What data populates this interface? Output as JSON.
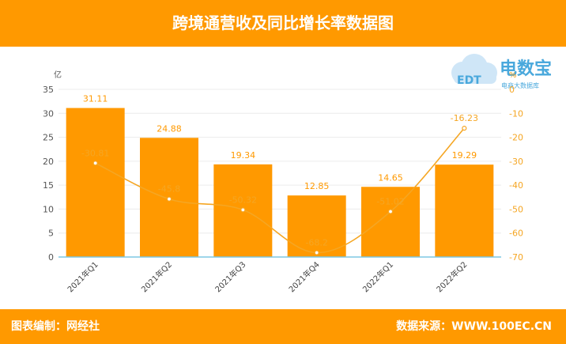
{
  "header": {
    "title": "跨境通营收及同比增长率数据图"
  },
  "logo": {
    "brand": "电数宝",
    "sub": "电商大数据库",
    "mark": "EDT"
  },
  "footer": {
    "editor": "图表编制：网经社",
    "source": "数据来源：WWW.100EC.CN"
  },
  "colors": {
    "accent": "#ff9900",
    "bar": "#ff9900",
    "line": "#f5a623",
    "baseline": "#7ec8e3"
  },
  "chart_data": {
    "type": "bar",
    "title": "跨境通营收及同比增长率数据图",
    "categories": [
      "2021年Q1",
      "2021年Q2",
      "2021年Q3",
      "2021年Q4",
      "2022年Q1",
      "2022年Q2"
    ],
    "y_unit_left": "亿",
    "y_unit_right": "%",
    "ylim": [
      0,
      35
    ],
    "y2lim": [
      -70,
      0
    ],
    "yticks": [
      0,
      5,
      10,
      15,
      20,
      25,
      30,
      35
    ],
    "y2ticks": [
      0,
      -10,
      -20,
      -30,
      -40,
      -50,
      -60,
      -70
    ],
    "series": [
      {
        "type": "bar",
        "axis": "left",
        "values": [
          31.11,
          24.88,
          19.34,
          12.85,
          14.65,
          19.29
        ],
        "labels": [
          "31.11",
          "24.88",
          "19.34",
          "12.85",
          "14.65",
          "19.29"
        ]
      },
      {
        "type": "line",
        "axis": "right",
        "values": [
          -30.81,
          -45.8,
          -50.32,
          -68.2,
          -51.02,
          -16.23
        ],
        "labels": [
          "-30.81",
          "-45.8",
          "-50.32",
          "-68.2",
          "-51.02",
          "-16.23"
        ]
      }
    ]
  }
}
